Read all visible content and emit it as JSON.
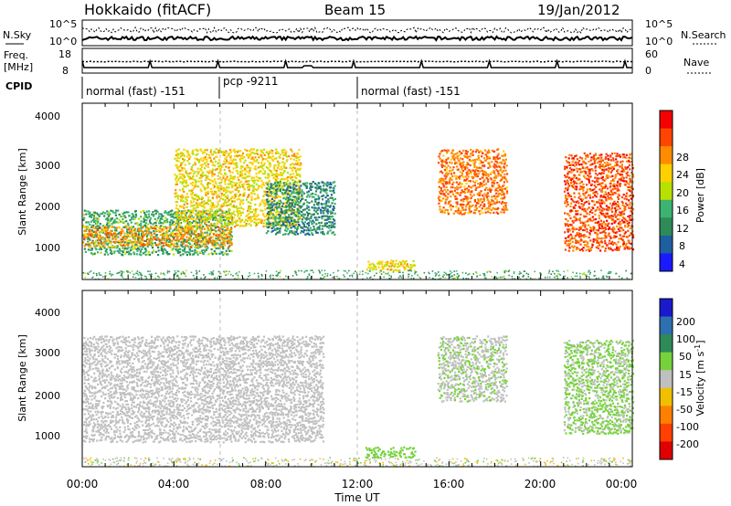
{
  "header": {
    "title": "Hokkaido (fitACF)",
    "beam": "Beam 15",
    "date": "19/Jan/2012"
  },
  "top_strip": {
    "left_label": "N.Sky",
    "right_label": "N.Search",
    "left_ticks": [
      "10^5",
      "10^0"
    ],
    "right_ticks": [
      "10^5",
      "10^0"
    ]
  },
  "freq_strip": {
    "left_label_1": "Freq.",
    "left_label_2": "[MHz]",
    "right_label": "Nave",
    "left_ticks": [
      "18",
      "8"
    ],
    "right_ticks": [
      "60",
      "0"
    ]
  },
  "cpid": {
    "label": "CPID",
    "segments": [
      {
        "name": "normal (fast) -151",
        "start_h": 0.0
      },
      {
        "name": "pcp -9211",
        "start_h": 6.0
      },
      {
        "name": "normal (fast) -151",
        "start_h": 12.0
      }
    ]
  },
  "power_panel": {
    "ylabel": "Slant Range [km]",
    "yticks": [
      "4000",
      "3000",
      "2000",
      "1000"
    ],
    "colorbar_label": "Power [dB]",
    "colorbar_ticks": [
      "28",
      "24",
      "20",
      "16",
      "12",
      "8",
      "4"
    ],
    "colors": [
      "#f50000",
      "#ff4500",
      "#ff8c00",
      "#ffd000",
      "#b8e000",
      "#3cb371",
      "#2e8b57",
      "#1e5fa0",
      "#1a1aff"
    ]
  },
  "velocity_panel": {
    "ylabel": "Slant Range [km]",
    "yticks": [
      "4000",
      "3000",
      "2000",
      "1000"
    ],
    "colorbar_label": "Velocity [m s",
    "colorbar_sup": "-1",
    "colorbar_tail": "]",
    "colorbar_ticks": [
      "200",
      "100",
      "50",
      "15",
      "-15",
      "-50",
      "-100",
      "-200"
    ],
    "colors": [
      "#1a1acc",
      "#2e6fb0",
      "#2e8b57",
      "#76d23c",
      "#c0c0c0",
      "#f0c000",
      "#ff8000",
      "#ff4000",
      "#e00000"
    ]
  },
  "xaxis": {
    "label": "Time UT",
    "ticks": [
      "00:00",
      "04:00",
      "08:00",
      "12:00",
      "16:00",
      "20:00",
      "00:00"
    ]
  },
  "chart_data": [
    {
      "type": "heatmap",
      "title": "Hokkaido (fitACF)",
      "xlabel": "Time UT",
      "ylabel": "Slant Range [km]",
      "zlabel": "Power [dB]",
      "xlim": [
        0,
        24
      ],
      "ylim": [
        180,
        4500
      ],
      "zlim": [
        0,
        30
      ],
      "regions": [
        {
          "t0": 0.0,
          "t1": 6.5,
          "r0": 800,
          "r1": 1900,
          "value": 10
        },
        {
          "t0": 0.0,
          "t1": 6.5,
          "r0": 1000,
          "r1": 1500,
          "value": 22
        },
        {
          "t0": 4.0,
          "t1": 9.5,
          "r0": 1500,
          "r1": 3400,
          "value": 18
        },
        {
          "t0": 8.0,
          "t1": 11.0,
          "r0": 1300,
          "r1": 2600,
          "value": 8
        },
        {
          "t0": 12.3,
          "t1": 14.5,
          "r0": 420,
          "r1": 680,
          "value": 18
        },
        {
          "t0": 15.5,
          "t1": 18.5,
          "r0": 1800,
          "r1": 3400,
          "value": 24
        },
        {
          "t0": 21.0,
          "t1": 24.0,
          "r0": 900,
          "r1": 3300,
          "value": 26
        }
      ]
    },
    {
      "type": "heatmap",
      "xlabel": "Time UT",
      "ylabel": "Slant Range [km]",
      "zlabel": "Velocity [m s-1]",
      "xlim": [
        0,
        24
      ],
      "ylim": [
        180,
        4500
      ],
      "zlim": [
        -200,
        200
      ],
      "regions": [
        {
          "t0": 0.0,
          "t1": 10.5,
          "r0": 800,
          "r1": 3400,
          "value": 0
        },
        {
          "t0": 12.3,
          "t1": 14.5,
          "r0": 420,
          "r1": 680,
          "value": 40
        },
        {
          "t0": 15.5,
          "t1": 18.5,
          "r0": 1800,
          "r1": 3400,
          "value": 20
        },
        {
          "t0": 21.0,
          "t1": 24.0,
          "r0": 1000,
          "r1": 3300,
          "value": 30
        }
      ]
    }
  ]
}
